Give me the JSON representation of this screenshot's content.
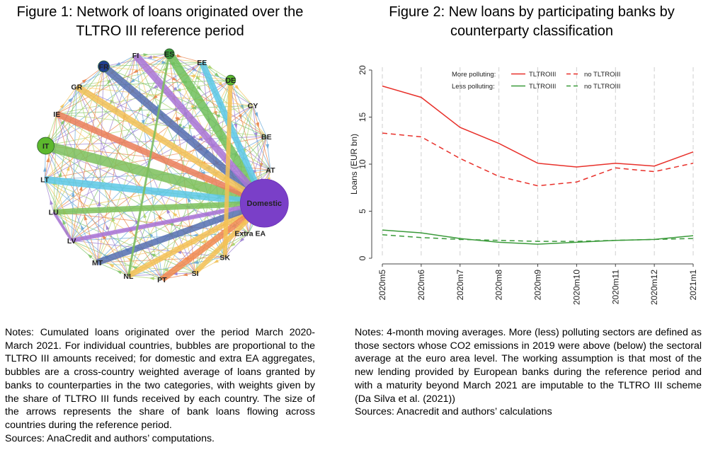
{
  "figure1": {
    "title": "Figure 1: Network of loans originated over the TLTRO III reference period",
    "nodes": [
      {
        "label": "FI",
        "color": "#ffffff"
      },
      {
        "label": "ES",
        "color": "#3a9a3a"
      },
      {
        "label": "EE",
        "color": "#ffffff"
      },
      {
        "label": "DE",
        "color": "#5cb82d"
      },
      {
        "label": "CY",
        "color": "#ffffff"
      },
      {
        "label": "BE",
        "color": "#ffffff"
      },
      {
        "label": "AT",
        "color": "#ffffff"
      },
      {
        "label": "Domestic",
        "color": "#7a3fc8"
      },
      {
        "label": "Extra EA",
        "color": "#ffffff"
      },
      {
        "label": "SK",
        "color": "#ffffff"
      },
      {
        "label": "SI",
        "color": "#ffffff"
      },
      {
        "label": "PT",
        "color": "#ffffff"
      },
      {
        "label": "NL",
        "color": "#ffffff"
      },
      {
        "label": "MT",
        "color": "#ffffff"
      },
      {
        "label": "LV",
        "color": "#ffffff"
      },
      {
        "label": "LU",
        "color": "#ffffff"
      },
      {
        "label": "LT",
        "color": "#ffffff"
      },
      {
        "label": "IT",
        "color": "#5cb82d"
      },
      {
        "label": "IE",
        "color": "#ffffff"
      },
      {
        "label": "GR",
        "color": "#ffffff"
      },
      {
        "label": "FR",
        "color": "#1f3f8f"
      }
    ],
    "notes": "Notes: Cumulated loans originated over the period March 2020-March 2021. For individual countries, bubbles are proportional to the TLTRO III amounts received; for domestic and extra EA aggregates, bubbles are a cross-country weighted average of loans granted by banks to counterparties in the two categories, with weights given by the share of TLTRO III funds received by each country. The size of the arrows represents the share of bank loans flowing across countries during the reference period.",
    "sources": "Sources: AnaCredit and authors’ computations."
  },
  "chart_data": {
    "type": "line",
    "title": "Figure 2: New loans by participating banks by counterparty classification",
    "categories": [
      "2020m5",
      "2020m6",
      "2020m7",
      "2020m8",
      "2020m9",
      "2020m10",
      "2020m11",
      "2020m12",
      "2021m1"
    ],
    "ylabel": "Loans (EUR bn)",
    "xlabel": "",
    "ylim": [
      0,
      20
    ],
    "yticks": [
      0,
      5,
      10,
      15,
      20
    ],
    "grid": "vertical dashed",
    "legend": {
      "position": "top",
      "row_labels": [
        "More polluting:",
        "Less polluting:"
      ],
      "entries": [
        "TLTROIII",
        "no TLTROIII",
        "TLTROIII",
        "no TLTROIII"
      ]
    },
    "series": [
      {
        "name": "TLTROIII",
        "group": "More polluting",
        "color": "#e8302a",
        "dash": "solid",
        "values": [
          18.3,
          17.1,
          13.9,
          12.2,
          10.1,
          9.7,
          10.1,
          9.8,
          11.3
        ]
      },
      {
        "name": "no TLTROIII",
        "group": "More polluting",
        "color": "#e8302a",
        "dash": "dashed",
        "values": [
          13.3,
          12.9,
          10.6,
          8.7,
          7.7,
          8.1,
          9.6,
          9.2,
          10.1
        ]
      },
      {
        "name": "TLTROIII",
        "group": "Less polluting",
        "color": "#3a9a3a",
        "dash": "solid",
        "values": [
          3.0,
          2.7,
          2.1,
          1.7,
          1.5,
          1.7,
          1.9,
          2.0,
          2.4
        ]
      },
      {
        "name": "no TLTROIII",
        "group": "Less polluting",
        "color": "#3a9a3a",
        "dash": "dashed",
        "values": [
          2.5,
          2.2,
          2.0,
          1.9,
          1.8,
          1.8,
          1.9,
          2.0,
          2.1
        ]
      }
    ],
    "notes": "Notes: 4-month moving averages. More (less) polluting sectors are defined as those sectors whose CO2 emissions in 2019 were above (below) the sectoral average at the euro area level. The working assumption is that most of the new lending provided by European banks during the reference period and with a maturity beyond March 2021 are imputable to the TLTRO III scheme (Da Silva et al. (2021))",
    "sources": "Sources: Anacredit and authors’ calculations"
  }
}
